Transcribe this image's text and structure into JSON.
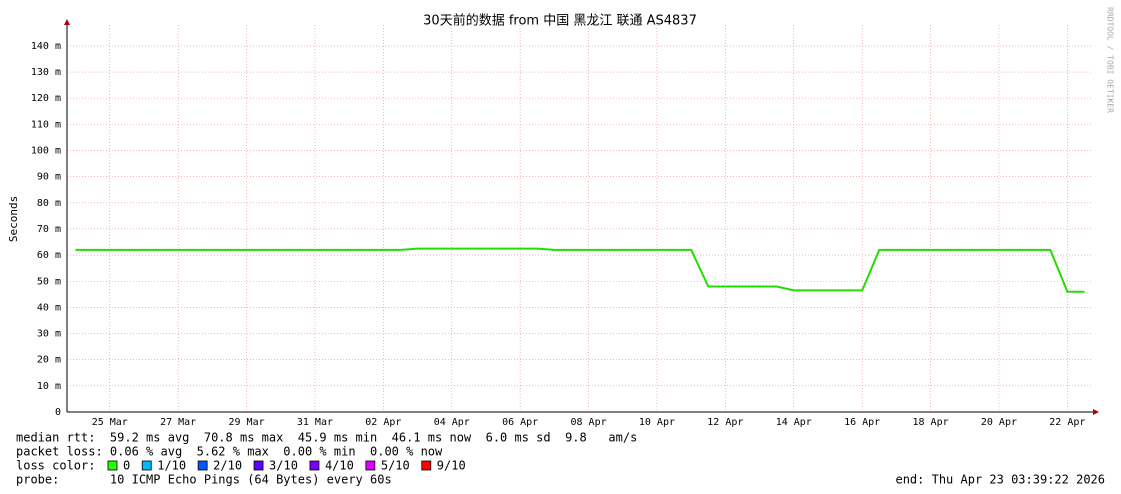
{
  "chart_data": {
    "type": "line",
    "title": "30天前的数据 from 中国 黑龙江 联通 AS4837",
    "y_label": "Seconds",
    "watermark": "RRDTOOL / TOBI OETIKER",
    "categories": [
      null,
      null,
      "25 Mar",
      null,
      null,
      null,
      "27 Mar",
      null,
      null,
      null,
      "29 Mar",
      null,
      null,
      null,
      "31 Mar",
      null,
      null,
      null,
      "02 Apr",
      null,
      null,
      null,
      "04 Apr",
      null,
      null,
      null,
      "06 Apr",
      null,
      null,
      null,
      "08 Apr",
      null,
      null,
      null,
      "10 Apr",
      null,
      null,
      null,
      "12 Apr",
      null,
      null,
      null,
      "14 Apr",
      null,
      null,
      null,
      "16 Apr",
      null,
      null,
      null,
      "18 Apr",
      null,
      null,
      null,
      "20 Apr",
      null,
      null,
      null,
      "22 Apr",
      null
    ],
    "values": [
      62,
      62,
      62,
      62,
      62,
      62,
      62,
      62,
      62,
      62,
      62,
      62,
      62,
      62,
      62,
      62,
      62,
      62,
      62,
      62,
      62.5,
      62.5,
      62.5,
      62.5,
      62.5,
      62.5,
      62.5,
      62.5,
      62,
      62,
      62,
      62,
      62,
      62,
      62,
      62,
      62,
      48,
      48,
      48,
      48,
      48,
      46.5,
      46.5,
      46.5,
      46.5,
      46.5,
      62,
      62,
      62,
      62,
      62,
      62,
      62,
      62,
      62,
      62,
      62,
      46,
      46
    ],
    "color": "#22dd00",
    "ylim": [
      0,
      148
    ],
    "yticks": [
      0,
      {
        "value": 10,
        "label": "10 m"
      },
      {
        "value": 20,
        "label": "20 m"
      },
      {
        "value": 30,
        "label": "30 m"
      },
      {
        "value": 40,
        "label": "40 m"
      },
      {
        "value": 50,
        "label": "50 m"
      },
      {
        "value": 60,
        "label": "60 m"
      },
      {
        "value": 70,
        "label": "70 m"
      },
      {
        "value": 80,
        "label": "80 m"
      },
      {
        "value": 90,
        "label": "90 m"
      },
      {
        "value": 100,
        "label": "100 m"
      },
      {
        "value": 110,
        "label": "110 m"
      },
      {
        "value": 120,
        "label": "120 m"
      },
      {
        "value": 130,
        "label": "130 m"
      },
      {
        "value": 140,
        "label": "140 m"
      }
    ],
    "grid": true,
    "footer": {
      "rtt": "median rtt:  59.2 ms avg  70.8 ms max  45.9 ms min  46.1 ms now  6.0 ms sd  9.8   am/s",
      "loss": "packet loss: 0.06 % avg  5.62 % max  0.00 % min  0.00 % now",
      "loss_label": "loss color:",
      "loss_colors": [
        {
          "label": "0",
          "color": "#26ff00"
        },
        {
          "label": "1/10",
          "color": "#00b8ff"
        },
        {
          "label": "2/10",
          "color": "#0059ff"
        },
        {
          "label": "3/10",
          "color": "#5e00ff"
        },
        {
          "label": "4/10",
          "color": "#7e00ff"
        },
        {
          "label": "5/10",
          "color": "#dd00ff"
        },
        {
          "label": "9/10",
          "color": "#ff0000"
        }
      ],
      "probe": "probe:       10 ICMP Echo Pings (64 Bytes) every 60s",
      "end": "end: Thu Apr 23 03:39:22 2026"
    }
  }
}
